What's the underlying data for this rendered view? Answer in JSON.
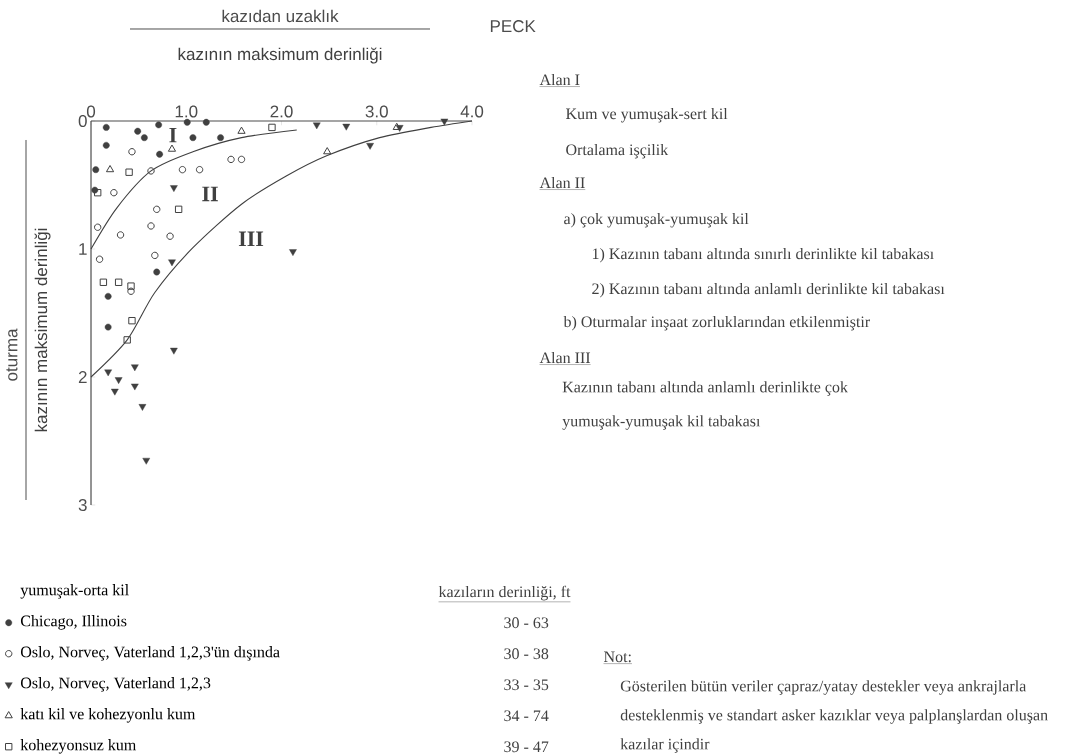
{
  "chart_data": {
    "type": "scatter",
    "title": "PECK",
    "xlabel": "kazıdan uzaklık",
    "ylabel": "oturma",
    "xlim": [
      0,
      4
    ],
    "xticks": [
      0,
      {
        "value": 1,
        "label": "1.0"
      },
      {
        "value": 2,
        "label": "2.0"
      },
      {
        "value": 3,
        "label": "3.0"
      },
      {
        "value": 4,
        "label": "4.0"
      }
    ],
    "ylim": [
      3,
      0
    ],
    "yticks": [
      0,
      1,
      2,
      3
    ],
    "legend": "bottom",
    "legend_title": "yumuşak-orta kil",
    "series": [
      {
        "name": "Chicago, Illinois",
        "color": "#404040",
        "marker": "circle",
        "x": [
          0.16,
          0.16,
          0.05,
          0.49,
          0.56,
          0.71,
          0.72,
          1.01,
          1.07,
          1.21,
          1.36,
          0.69,
          0.18,
          0.18,
          0.04
        ],
        "values": [
          0.05,
          0.19,
          0.38,
          0.08,
          0.13,
          0.03,
          0.26,
          0.01,
          0.13,
          0.01,
          0.13,
          1.18,
          1.37,
          1.61,
          0.54
        ]
      },
      {
        "name": "Oslo, Norveç, Vaterland 1,2,3'ün dışında",
        "color": "#404040",
        "marker": "circle-open",
        "x": [
          0.07,
          0.31,
          0.63,
          0.96,
          1.14,
          1.47,
          1.58,
          0.83,
          0.67,
          0.42,
          0.09,
          0.69,
          0.63,
          0.43,
          0.24
        ],
        "values": [
          0.83,
          0.89,
          0.39,
          0.38,
          0.38,
          0.3,
          0.3,
          0.9,
          1.05,
          1.33,
          1.08,
          0.69,
          0.82,
          0.24,
          0.56
        ]
      },
      {
        "name": "Oslo, Norveç, Vaterland 1,2,3",
        "color": "#404040",
        "marker": "triangle-down",
        "x": [
          2.37,
          2.68,
          2.93,
          3.24,
          2.12,
          0.87,
          0.87,
          0.46,
          0.18,
          0.29,
          0.46,
          0.25,
          0.54,
          0.58,
          3.71,
          0.85
        ],
        "values": [
          0.03,
          0.04,
          0.19,
          0.05,
          1.02,
          0.52,
          1.79,
          1.92,
          1.96,
          2.02,
          2.07,
          2.11,
          2.23,
          2.65,
          0.0,
          1.1
        ]
      },
      {
        "name": "katı kil ve kohezyonlu kum",
        "color": "#404040",
        "marker": "triangle-open",
        "x": [
          1.58,
          2.48,
          3.21,
          0.2,
          0.85
        ],
        "values": [
          0.08,
          0.24,
          0.05,
          0.38,
          0.22
        ]
      },
      {
        "name": "kohezyonsuz kum",
        "color": "#404040",
        "marker": "square-open",
        "x": [
          0.92,
          0.13,
          0.29,
          0.42,
          1.9,
          0.07,
          0.4,
          0.43,
          0.38
        ],
        "values": [
          0.69,
          1.26,
          1.26,
          1.29,
          0.05,
          0.56,
          0.4,
          1.56,
          1.71
        ]
      },
      {
        "type": "line",
        "color": "#404040",
        "marker": "none",
        "x": [
          0,
          0.27,
          0.63,
          1.07,
          1.58,
          2.16
        ],
        "values": [
          1.0,
          0.68,
          0.39,
          0.24,
          0.13,
          0.07
        ]
      },
      {
        "type": "line",
        "color": "#404040",
        "marker": "none",
        "x": [
          0,
          0.38,
          0.67,
          1.07,
          1.58,
          2.05,
          2.48,
          3.03,
          3.57,
          4.0
        ],
        "values": [
          2.0,
          1.71,
          1.34,
          0.99,
          0.65,
          0.43,
          0.27,
          0.13,
          0.05,
          0.0
        ]
      }
    ],
    "annotations": [
      "I",
      "II",
      "III",
      "kazının maksimum derinliği",
      "kazının maksimum derinliği",
      "Alan I",
      "Kum ve yumuşak-sert kil",
      "Ortalama işçilik",
      "Alan II",
      "a) çok yumuşak-yumuşak kil",
      "1) Kazının tabanı altında sınırlı derinlikte kil tabakası",
      "2) Kazının tabanı altında anlamlı derinlikte kil tabakası",
      "b) Oturmalar inşaat zorluklarından etkilenmiştir",
      "Alan III",
      "Kazının tabanı altında anlamlı derinlikte çok yumuşak-yumuşak kil tabakası",
      "kazıların derinliği, ft",
      "30 - 63",
      "30 - 38",
      "33 - 35",
      "34 - 74",
      "39 - 47",
      "Not:",
      "Gösterilen bütün veriler çapraz/yatay destekler veya ankrajlarla desteklenmiş ve standart asker kazıklar veya palplanşlardan oluşan kazılar içindir"
    ]
  }
}
